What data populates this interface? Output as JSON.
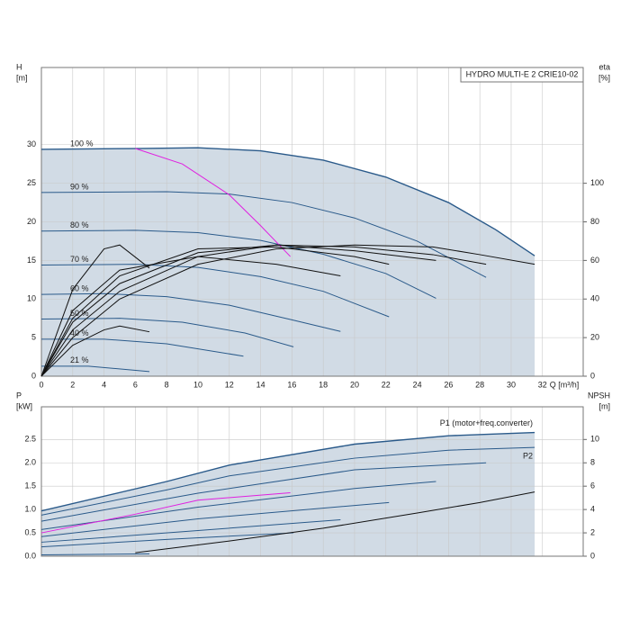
{
  "chart_data": [
    {
      "type": "line",
      "title": "HYDRO MULTI-E 2 CRIE10-02",
      "y_label": "H",
      "y_unit": "[m]",
      "y2_label": "eta",
      "y2_unit": "[%]",
      "x_label": "Q [m³/h]",
      "xlim": [
        0,
        34.6
      ],
      "xticks": [
        0,
        2,
        4,
        6,
        8,
        10,
        12,
        14,
        16,
        18,
        20,
        22,
        24,
        26,
        28,
        30,
        32
      ],
      "ylim": [
        0,
        40
      ],
      "yticks": [
        0,
        5,
        10,
        15,
        20,
        25,
        30
      ],
      "y2lim": [
        0,
        160
      ],
      "y2ticks": [
        0,
        20,
        40,
        60,
        80,
        100
      ],
      "grid": true,
      "series": [
        {
          "name": "100 %",
          "color": "#2a5a8a",
          "fill": "#c9d5e1",
          "x": [
            0,
            6,
            10,
            14,
            18,
            22,
            26,
            29,
            31.5
          ],
          "values": [
            29.4,
            29.5,
            29.6,
            29.2,
            28,
            25.8,
            22.5,
            19,
            15.6
          ]
        },
        {
          "name": "90 %",
          "color": "#2a5a8a",
          "x": [
            0,
            8,
            12,
            16,
            20,
            24,
            28.4
          ],
          "values": [
            23.8,
            23.9,
            23.6,
            22.5,
            20.5,
            17.5,
            12.8
          ]
        },
        {
          "name": "80 %",
          "color": "#2a5a8a",
          "x": [
            0,
            6,
            10,
            14,
            18,
            22,
            25.2
          ],
          "values": [
            18.8,
            18.9,
            18.6,
            17.6,
            15.8,
            13.3,
            10.1
          ]
        },
        {
          "name": "70 %",
          "color": "#2a5a8a",
          "x": [
            0,
            6,
            10,
            14,
            18,
            22.2
          ],
          "values": [
            14.4,
            14.5,
            14.1,
            12.9,
            11,
            7.7
          ]
        },
        {
          "name": "60 %",
          "color": "#2a5a8a",
          "x": [
            0,
            4,
            8,
            12,
            16,
            19.1
          ],
          "values": [
            10.6,
            10.7,
            10.3,
            9.2,
            7.3,
            5.8
          ]
        },
        {
          "name": "50 %",
          "color": "#2a5a8a",
          "x": [
            0,
            5,
            9,
            13,
            16.1
          ],
          "values": [
            7.4,
            7.5,
            7,
            5.6,
            3.8
          ]
        },
        {
          "name": "40 %",
          "color": "#2a5a8a",
          "x": [
            0,
            4,
            8,
            12.9
          ],
          "values": [
            4.8,
            4.8,
            4.2,
            2.6
          ]
        },
        {
          "name": "21 %",
          "color": "#2a5a8a",
          "x": [
            0,
            3,
            6.9
          ],
          "values": [
            1.3,
            1.3,
            0.6
          ]
        },
        {
          "color": "#e020e0",
          "x": [
            6,
            9,
            12,
            14,
            15.9
          ],
          "values": [
            29.5,
            27.5,
            23.5,
            19.5,
            15.5
          ]
        },
        {
          "color": "#111111",
          "axis": "y2",
          "x": [
            0,
            2,
            5,
            10,
            15,
            20,
            25,
            28,
            31.5
          ],
          "values": [
            0,
            20,
            40,
            58,
            66,
            68,
            67,
            63,
            58
          ]
        },
        {
          "color": "#111111",
          "axis": "y2",
          "x": [
            0,
            2,
            5,
            10,
            15,
            20,
            25,
            28.4
          ],
          "values": [
            0,
            24,
            44,
            62,
            68,
            67,
            63,
            58
          ]
        },
        {
          "color": "#111111",
          "axis": "y2",
          "x": [
            0,
            2,
            5,
            10,
            15,
            20,
            25.2
          ],
          "values": [
            0,
            28,
            48,
            64,
            68,
            65,
            60
          ]
        },
        {
          "color": "#111111",
          "axis": "y2",
          "x": [
            0,
            2,
            5,
            10,
            15,
            20,
            22.2
          ],
          "values": [
            0,
            30,
            52,
            66,
            67,
            62,
            58
          ]
        },
        {
          "color": "#111111",
          "axis": "y2",
          "x": [
            0,
            2,
            5,
            10,
            15,
            19.1
          ],
          "values": [
            0,
            34,
            55,
            62,
            58,
            52
          ]
        },
        {
          "color": "#111111",
          "axis": "y2",
          "x": [
            0,
            2,
            4,
            5,
            6.9
          ],
          "values": [
            0,
            45,
            66,
            68,
            56
          ]
        },
        {
          "color": "#111111",
          "axis": "y2",
          "x": [
            0,
            2,
            4,
            5,
            6.9
          ],
          "values": [
            0,
            16,
            24,
            26,
            23
          ]
        }
      ]
    },
    {
      "type": "line",
      "y_label": "P",
      "y_unit": "[kW]",
      "y2_label": "NPSH",
      "y2_unit": "[m]",
      "xlim": [
        0,
        34.6
      ],
      "xticks": [
        0,
        2,
        4,
        6,
        8,
        10,
        12,
        14,
        16,
        18,
        20,
        22,
        24,
        26,
        28,
        30,
        32
      ],
      "ylim": [
        0,
        3.2
      ],
      "yticks": [
        {
          "value": 0,
          "label": "0.0"
        },
        0.5,
        {
          "value": 1,
          "label": "1.0"
        },
        1.5,
        {
          "value": 2,
          "label": "2.0"
        },
        2.5
      ],
      "y2lim": [
        0,
        12.8
      ],
      "y2ticks": [
        0,
        2,
        4,
        6,
        8,
        10
      ],
      "grid": true,
      "series": [
        {
          "name": "P1 (motor+freq.converter)",
          "color": "#2a5a8a",
          "fill": "#c9d5e1",
          "x": [
            0,
            8,
            12,
            20,
            26,
            31.5
          ],
          "values": [
            0.97,
            1.6,
            1.95,
            2.4,
            2.58,
            2.65
          ]
        },
        {
          "name": "P2",
          "color": "#2a5a8a",
          "x": [
            0,
            8,
            12,
            20,
            26,
            31.5
          ],
          "values": [
            0.88,
            1.42,
            1.72,
            2.1,
            2.27,
            2.33
          ]
        },
        {
          "color": "#2a5a8a",
          "x": [
            0,
            10,
            20,
            28.4
          ],
          "values": [
            0.75,
            1.35,
            1.85,
            2.0
          ]
        },
        {
          "color": "#2a5a8a",
          "x": [
            0,
            10,
            20,
            25.2
          ],
          "values": [
            0.57,
            1.05,
            1.45,
            1.6
          ]
        },
        {
          "color": "#2a5a8a",
          "x": [
            0,
            10,
            22.2
          ],
          "values": [
            0.42,
            0.8,
            1.15
          ]
        },
        {
          "color": "#2a5a8a",
          "x": [
            0,
            10,
            19.1
          ],
          "values": [
            0.3,
            0.55,
            0.78
          ]
        },
        {
          "color": "#2a5a8a",
          "x": [
            0,
            8,
            16.1
          ],
          "values": [
            0.2,
            0.36,
            0.5
          ]
        },
        {
          "color": "#2a5a8a",
          "x": [
            0,
            6.9
          ],
          "values": [
            0.03,
            0.05
          ]
        },
        {
          "color": "#e020e0",
          "x": [
            0,
            6,
            10,
            15.9
          ],
          "values": [
            0.5,
            0.9,
            1.2,
            1.36
          ]
        },
        {
          "color": "#111111",
          "axis": "y2",
          "x": [
            6,
            12,
            18,
            24,
            28,
            31.5
          ],
          "values": [
            0.3,
            1.3,
            2.4,
            3.7,
            4.6,
            5.5
          ]
        }
      ]
    }
  ]
}
